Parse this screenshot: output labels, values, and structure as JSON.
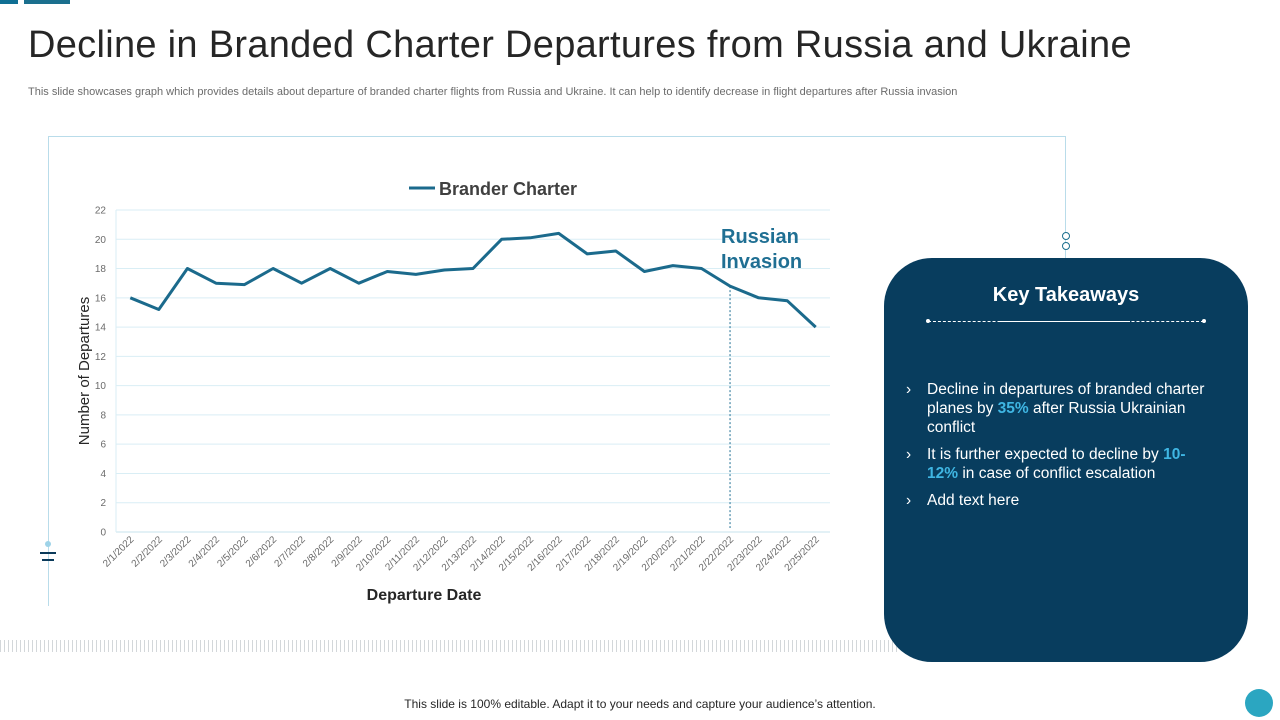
{
  "header": {
    "title": "Decline in Branded Charter Departures from Russia and Ukraine",
    "subtitle": "This slide showcases graph which provides details about departure of branded charter flights from Russia and Ukraine. It can help to identify decrease in flight departures after Russia invasion"
  },
  "chart_data": {
    "type": "line",
    "title": "",
    "legend": "Brander Charter",
    "legend_position": "top-center",
    "xlabel": "Departure Date",
    "ylabel": "Number of Departures",
    "ylim": [
      0,
      22
    ],
    "yticks": [
      0,
      2,
      4,
      6,
      8,
      10,
      12,
      14,
      16,
      18,
      20,
      22
    ],
    "grid": true,
    "categories": [
      "2/1/2022",
      "2/2/2022",
      "2/3/2022",
      "2/4/2022",
      "2/5/2022",
      "2/6/2022",
      "2/7/2022",
      "2/8/2022",
      "2/9/2022",
      "2/10/2022",
      "2/11/2022",
      "2/12/2022",
      "2/13/2022",
      "2/14/2022",
      "2/15/2022",
      "2/16/2022",
      "2/17/2022",
      "2/18/2022",
      "2/19/2022",
      "2/20/2022",
      "2/21/2022",
      "2/22/2022",
      "2/23/2022",
      "2/24/2022",
      "2/25/2022"
    ],
    "series": [
      {
        "name": "Brander Charter",
        "color": "#1b6a8c",
        "values": [
          16,
          15.2,
          18,
          17,
          16.9,
          18,
          17,
          18,
          17,
          17.8,
          17.6,
          17.9,
          18,
          20,
          20.1,
          20.4,
          19,
          19.2,
          17.8,
          18.2,
          18,
          16.8,
          16,
          15.8,
          14
        ]
      }
    ],
    "annotation": {
      "text_line1": "Russian",
      "text_line2": "Invasion",
      "at_category": "2/22/2022",
      "color": "#1f6f93"
    }
  },
  "takeaways": {
    "title": "Key Takeaways",
    "items": [
      {
        "pre": "Decline in departures of branded charter planes by ",
        "highlight": "35%",
        "post": " after Russia Ukrainian conflict"
      },
      {
        "pre": "It is further  expected to decline by ",
        "highlight": "10-12%",
        "post": " in case of conflict escalation"
      },
      {
        "pre": "Add text here",
        "highlight": "",
        "post": ""
      }
    ],
    "bullet_glyph": "›"
  },
  "footer": {
    "text": "This slide is 100% editable. Adapt it to your needs and capture your audience’s attention."
  },
  "colors": {
    "accent": "#1b6a8c",
    "panel": "#083d5e",
    "highlight": "#3fb6e3"
  }
}
